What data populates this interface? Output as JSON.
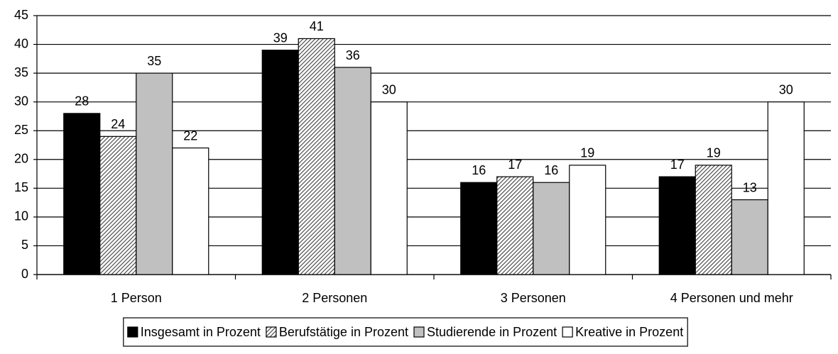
{
  "chart_data": {
    "type": "bar",
    "categories": [
      "1 Person",
      "2 Personen",
      "3 Personen",
      "4 Personen und mehr"
    ],
    "series": [
      {
        "name": "Insgesamt in Prozent",
        "color": "#000000",
        "values": [
          28,
          39,
          16,
          17
        ]
      },
      {
        "name": "Berufstätige in Prozent",
        "color": "#a0a0a0",
        "pattern": "hatch",
        "values": [
          24,
          41,
          17,
          19
        ]
      },
      {
        "name": "Studierende in Prozent",
        "color": "#c0c0c0",
        "values": [
          35,
          36,
          16,
          13
        ]
      },
      {
        "name": "Kreative in Prozent",
        "color": "#ffffff",
        "values": [
          22,
          30,
          19,
          30
        ]
      }
    ],
    "ylim": [
      0,
      45
    ],
    "yticks": [
      0,
      5,
      10,
      15,
      20,
      25,
      30,
      35,
      40,
      45
    ],
    "grid": true,
    "legend": "bottom"
  }
}
